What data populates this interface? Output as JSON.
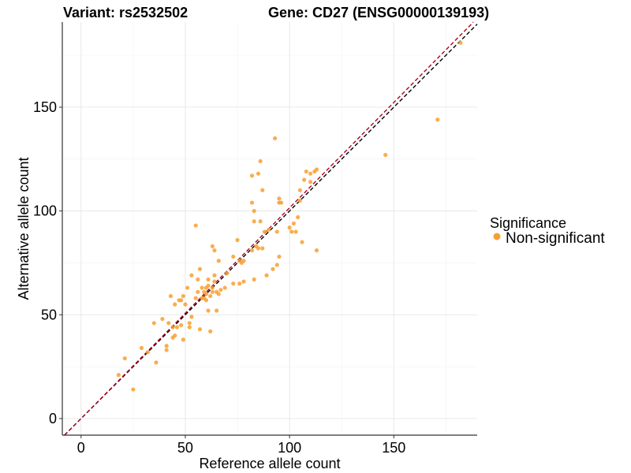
{
  "chart_data": {
    "type": "scatter",
    "title_left": "Variant: rs2532502",
    "title_right": "Gene: CD27 (ENSG00000139193)",
    "xlabel": "Reference allele count",
    "ylabel": "Alternative allele count",
    "xlim": [
      -9,
      190
    ],
    "ylim": [
      -8,
      191
    ],
    "x_ticks": [
      0,
      50,
      100,
      150
    ],
    "y_ticks": [
      0,
      50,
      100,
      150
    ],
    "grid": true,
    "legend": {
      "title": "Significance",
      "position": "right",
      "entries": [
        {
          "label": "Non-significant",
          "color": "#f7a030"
        }
      ]
    },
    "reference_lines": [
      {
        "name": "identity",
        "slope": 1.0,
        "intercept": 0,
        "color": "#000000",
        "dash": "dashed"
      },
      {
        "name": "fitted",
        "slope": 1.015,
        "intercept": 0,
        "color": "#b0001e",
        "dash": "dashed"
      }
    ],
    "series": [
      {
        "name": "Non-significant",
        "color": "#f7a030",
        "points": [
          [
            18,
            21
          ],
          [
            21,
            29
          ],
          [
            25,
            14
          ],
          [
            29,
            34
          ],
          [
            32,
            32
          ],
          [
            35,
            46
          ],
          [
            36,
            27
          ],
          [
            39,
            48
          ],
          [
            41,
            35
          ],
          [
            41,
            33
          ],
          [
            42,
            46
          ],
          [
            43,
            59
          ],
          [
            44,
            44
          ],
          [
            44,
            39
          ],
          [
            45,
            40
          ],
          [
            45,
            55
          ],
          [
            46,
            44
          ],
          [
            47,
            57
          ],
          [
            48,
            45
          ],
          [
            48,
            57
          ],
          [
            49,
            38
          ],
          [
            49,
            59
          ],
          [
            50,
            55
          ],
          [
            51,
            63
          ],
          [
            52,
            46
          ],
          [
            52,
            44
          ],
          [
            53,
            49
          ],
          [
            53,
            69
          ],
          [
            55,
            93
          ],
          [
            55,
            58
          ],
          [
            56,
            61
          ],
          [
            56,
            67
          ],
          [
            57,
            72
          ],
          [
            57,
            43
          ],
          [
            58,
            58
          ],
          [
            58,
            63
          ],
          [
            59,
            58
          ],
          [
            59,
            61
          ],
          [
            60,
            57
          ],
          [
            60,
            60
          ],
          [
            60,
            63
          ],
          [
            61,
            52
          ],
          [
            61,
            64
          ],
          [
            61,
            67
          ],
          [
            62,
            42
          ],
          [
            62,
            59
          ],
          [
            63,
            83
          ],
          [
            63,
            63
          ],
          [
            63,
            61
          ],
          [
            64,
            69
          ],
          [
            64,
            81
          ],
          [
            64,
            66
          ],
          [
            65,
            61
          ],
          [
            65,
            52
          ],
          [
            66,
            76
          ],
          [
            66,
            60
          ],
          [
            67,
            62
          ],
          [
            69,
            63
          ],
          [
            70,
            70
          ],
          [
            73,
            65
          ],
          [
            73,
            78
          ],
          [
            75,
            86
          ],
          [
            76,
            76
          ],
          [
            76,
            65
          ],
          [
            77,
            75
          ],
          [
            78,
            76
          ],
          [
            78,
            66
          ],
          [
            82,
            81
          ],
          [
            82,
            117
          ],
          [
            82,
            104
          ],
          [
            83,
            100
          ],
          [
            83,
            95
          ],
          [
            83,
            67
          ],
          [
            84,
            83
          ],
          [
            85,
            118
          ],
          [
            85,
            82
          ],
          [
            86,
            124
          ],
          [
            86,
            95
          ],
          [
            87,
            110
          ],
          [
            87,
            82
          ],
          [
            88,
            90
          ],
          [
            89,
            69
          ],
          [
            90,
            91
          ],
          [
            92,
            72
          ],
          [
            93,
            135
          ],
          [
            94,
            74
          ],
          [
            94,
            90
          ],
          [
            95,
            78
          ],
          [
            95,
            106
          ],
          [
            95,
            104
          ],
          [
            96,
            104
          ],
          [
            100,
            92
          ],
          [
            101,
            90
          ],
          [
            102,
            94
          ],
          [
            103,
            90
          ],
          [
            104,
            97
          ],
          [
            105,
            110
          ],
          [
            105,
            105
          ],
          [
            106,
            85
          ],
          [
            107,
            115
          ],
          [
            108,
            119
          ],
          [
            110,
            114
          ],
          [
            110,
            118
          ],
          [
            112,
            119
          ],
          [
            113,
            120
          ],
          [
            113,
            81
          ],
          [
            146,
            127
          ],
          [
            171,
            144
          ],
          [
            182,
            181
          ]
        ]
      }
    ]
  }
}
